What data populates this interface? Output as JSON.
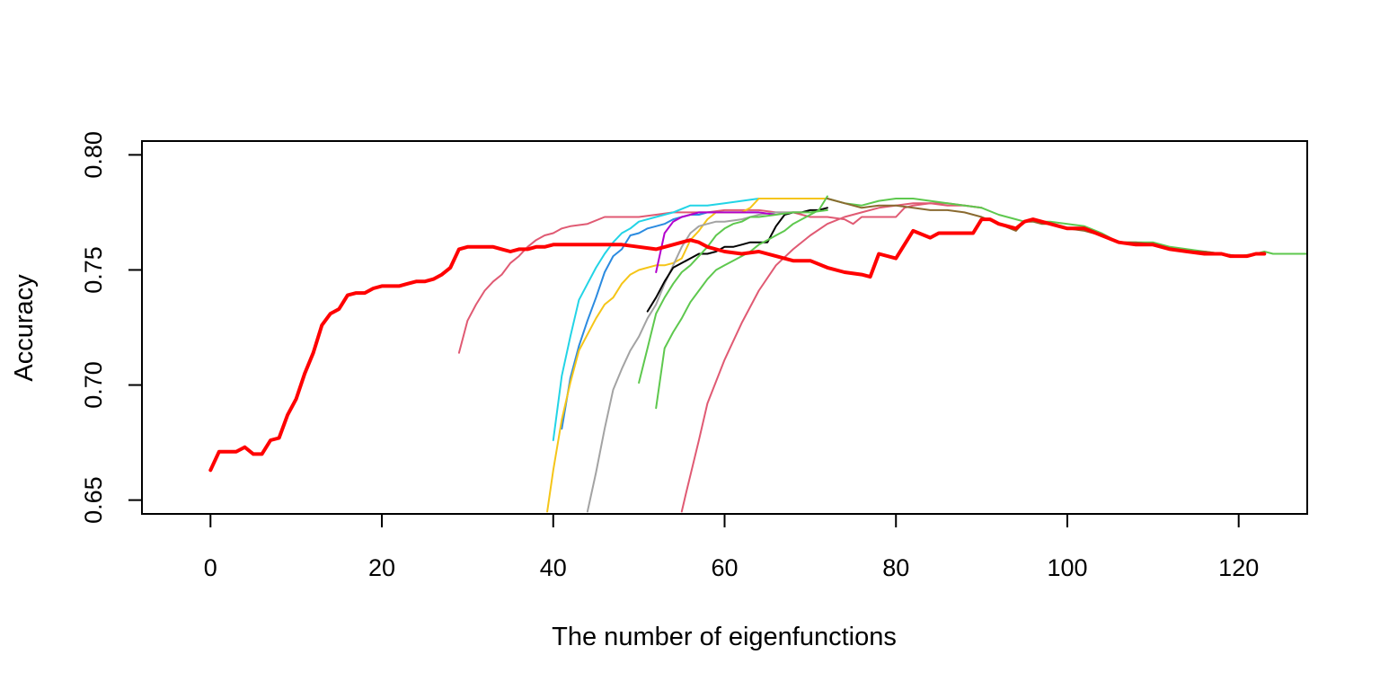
{
  "chart_data": {
    "type": "line",
    "title": "",
    "xlabel": "The number of eigenfunctions",
    "ylabel": "Accuracy",
    "xlim": [
      -8,
      128
    ],
    "ylim": [
      0.644,
      0.806
    ],
    "xticks": [
      0,
      20,
      40,
      60,
      80,
      100,
      120
    ],
    "yticks": [
      0.65,
      0.7,
      0.75,
      0.8
    ],
    "ytick_labels": [
      "0.65",
      "0.70",
      "0.75",
      "0.80"
    ],
    "grid": false,
    "legend": "none",
    "series": [
      {
        "color": "#e05a73",
        "width": 2,
        "x": [
          29,
          30,
          31,
          32,
          33,
          34,
          35,
          36,
          37,
          38,
          39,
          40,
          41,
          42,
          44,
          46,
          48,
          50,
          52,
          54,
          56,
          58,
          60,
          62,
          64,
          66,
          68,
          70,
          72,
          74,
          75,
          76,
          78,
          80,
          81,
          82,
          84,
          86,
          88,
          90
        ],
        "y": [
          0.714,
          0.728,
          0.735,
          0.741,
          0.745,
          0.748,
          0.753,
          0.756,
          0.76,
          0.763,
          0.765,
          0.766,
          0.768,
          0.769,
          0.77,
          0.773,
          0.773,
          0.773,
          0.774,
          0.775,
          0.775,
          0.775,
          0.776,
          0.776,
          0.776,
          0.775,
          0.775,
          0.773,
          0.773,
          0.772,
          0.77,
          0.773,
          0.773,
          0.773,
          0.777,
          0.778,
          0.779,
          0.778,
          0.778,
          0.777
        ]
      },
      {
        "color": "#e05a73",
        "width": 2,
        "x": [
          55,
          55.5,
          57,
          58,
          60,
          62,
          64,
          66,
          68,
          70,
          72,
          74,
          76,
          78,
          80,
          82,
          84,
          86,
          88,
          90
        ],
        "y": [
          0.645,
          0.653,
          0.676,
          0.692,
          0.711,
          0.727,
          0.741,
          0.752,
          0.759,
          0.765,
          0.77,
          0.773,
          0.775,
          0.777,
          0.778,
          0.779,
          0.779,
          0.779,
          0.778,
          0.777
        ]
      },
      {
        "color": "#22d4e6",
        "width": 2,
        "x": [
          40,
          41,
          42,
          43,
          44,
          45,
          46,
          47,
          48,
          49,
          50,
          52,
          54,
          56,
          58,
          60,
          62,
          64
        ],
        "y": [
          0.676,
          0.704,
          0.721,
          0.737,
          0.744,
          0.751,
          0.757,
          0.762,
          0.766,
          0.768,
          0.771,
          0.773,
          0.775,
          0.778,
          0.778,
          0.779,
          0.78,
          0.781
        ]
      },
      {
        "color": "#2b8be0",
        "width": 2,
        "x": [
          41,
          42,
          43,
          44,
          45,
          46,
          47,
          48,
          49,
          50,
          51,
          52,
          53,
          54,
          55,
          56,
          57,
          58,
          60,
          62,
          64
        ],
        "y": [
          0.681,
          0.703,
          0.717,
          0.728,
          0.738,
          0.749,
          0.756,
          0.759,
          0.765,
          0.766,
          0.768,
          0.769,
          0.77,
          0.772,
          0.773,
          0.774,
          0.774,
          0.775,
          0.775,
          0.775,
          0.775
        ]
      },
      {
        "color": "#f5c518",
        "width": 2,
        "x": [
          39.3,
          40,
          41,
          42,
          43,
          44,
          45,
          46,
          47,
          48,
          49,
          50,
          51,
          52,
          53,
          54,
          55,
          56,
          57,
          58,
          59,
          60,
          62,
          63,
          64,
          66,
          68,
          70,
          72
        ],
        "y": [
          0.645,
          0.663,
          0.685,
          0.701,
          0.715,
          0.722,
          0.729,
          0.735,
          0.738,
          0.744,
          0.748,
          0.75,
          0.751,
          0.752,
          0.752,
          0.753,
          0.755,
          0.763,
          0.767,
          0.772,
          0.775,
          0.775,
          0.775,
          0.777,
          0.781,
          0.781,
          0.781,
          0.781,
          0.781
        ]
      },
      {
        "color": "#a3a3a3",
        "width": 2,
        "x": [
          44,
          45,
          46,
          47,
          48,
          49,
          50,
          51,
          52,
          53,
          54,
          55,
          56,
          57,
          58,
          59,
          60,
          62,
          64,
          66,
          68
        ],
        "y": [
          0.645,
          0.662,
          0.681,
          0.698,
          0.707,
          0.715,
          0.721,
          0.729,
          0.735,
          0.744,
          0.752,
          0.76,
          0.766,
          0.769,
          0.77,
          0.771,
          0.771,
          0.772,
          0.774,
          0.775,
          0.775
        ]
      },
      {
        "color": "#b300cc",
        "width": 2,
        "x": [
          52,
          53,
          54,
          55,
          56,
          57,
          58,
          60,
          62,
          64,
          66
        ],
        "y": [
          0.749,
          0.766,
          0.771,
          0.773,
          0.774,
          0.775,
          0.775,
          0.775,
          0.775,
          0.775,
          0.774
        ]
      },
      {
        "color": "#000000",
        "width": 2,
        "x": [
          51,
          52,
          53,
          54,
          55,
          56,
          57,
          58,
          59,
          60,
          61,
          62,
          63,
          64,
          65,
          66,
          67,
          68,
          69,
          70,
          71,
          72
        ],
        "y": [
          0.732,
          0.738,
          0.745,
          0.751,
          0.753,
          0.755,
          0.757,
          0.757,
          0.758,
          0.76,
          0.76,
          0.761,
          0.762,
          0.762,
          0.762,
          0.769,
          0.774,
          0.775,
          0.775,
          0.776,
          0.776,
          0.777
        ]
      },
      {
        "color": "#5ec84e",
        "width": 2,
        "x": [
          50,
          51,
          52,
          53,
          54,
          55,
          56,
          57,
          58,
          59,
          60,
          61,
          62,
          63,
          64,
          66,
          68,
          70,
          72
        ],
        "y": [
          0.701,
          0.716,
          0.731,
          0.738,
          0.744,
          0.749,
          0.752,
          0.756,
          0.76,
          0.765,
          0.768,
          0.77,
          0.771,
          0.773,
          0.773,
          0.774,
          0.775,
          0.775,
          0.776
        ]
      },
      {
        "color": "#5ec84e",
        "width": 2,
        "x": [
          52,
          53,
          54,
          55,
          56,
          57,
          58,
          59,
          60,
          61,
          62,
          63,
          64,
          65,
          66,
          67,
          68,
          69,
          70,
          71,
          72
        ],
        "y": [
          0.69,
          0.716,
          0.723,
          0.729,
          0.736,
          0.741,
          0.746,
          0.75,
          0.752,
          0.754,
          0.756,
          0.758,
          0.761,
          0.763,
          0.765,
          0.767,
          0.77,
          0.772,
          0.774,
          0.776,
          0.782
        ]
      },
      {
        "color": "#5ec84e",
        "width": 2,
        "x": [
          72,
          74,
          76,
          78,
          80,
          82,
          84,
          86,
          88,
          90,
          92,
          94,
          95,
          96,
          97,
          98,
          100,
          102,
          104,
          106,
          108,
          110,
          112,
          114,
          116,
          118,
          120,
          122,
          123,
          124,
          125,
          126,
          128
        ],
        "y": [
          0.781,
          0.779,
          0.778,
          0.78,
          0.781,
          0.781,
          0.78,
          0.779,
          0.778,
          0.777,
          0.774,
          0.772,
          0.771,
          0.772,
          0.771,
          0.771,
          0.77,
          0.769,
          0.766,
          0.762,
          0.762,
          0.762,
          0.76,
          0.759,
          0.758,
          0.757,
          0.756,
          0.757,
          0.758,
          0.757,
          0.757,
          0.757,
          0.757
        ]
      },
      {
        "color": "#8a6a30",
        "width": 2,
        "x": [
          72,
          74,
          76,
          78,
          80,
          82,
          84,
          86,
          88,
          90,
          92,
          94,
          95,
          96,
          97,
          98,
          100,
          102,
          104,
          106,
          108,
          110,
          112,
          114,
          116,
          118,
          120,
          121,
          122,
          123
        ],
        "y": [
          0.781,
          0.779,
          0.777,
          0.778,
          0.778,
          0.777,
          0.776,
          0.776,
          0.775,
          0.773,
          0.77,
          0.767,
          0.771,
          0.771,
          0.77,
          0.77,
          0.768,
          0.767,
          0.765,
          0.762,
          0.762,
          0.761,
          0.759,
          0.758,
          0.758,
          0.757,
          0.756,
          0.756,
          0.757,
          0.757
        ]
      },
      {
        "color": "#ff0000",
        "width": 4,
        "x": [
          0,
          1,
          2,
          3,
          4,
          5,
          6,
          7,
          8,
          9,
          10,
          11,
          12,
          13,
          14,
          15,
          16,
          17,
          18,
          19,
          20,
          21,
          22,
          23,
          24,
          25,
          26,
          27,
          28,
          29,
          30,
          31,
          32,
          33,
          34,
          35,
          36,
          37,
          38,
          39,
          40,
          41,
          42,
          44,
          46,
          48,
          50,
          52,
          54,
          55,
          56,
          57,
          58,
          60,
          62,
          64,
          66,
          68,
          70,
          72,
          74,
          76,
          77,
          78,
          80,
          82,
          84,
          85,
          86,
          88,
          89,
          90,
          91,
          92,
          94,
          95,
          96,
          98,
          100,
          102,
          104,
          106,
          108,
          110,
          112,
          114,
          116,
          118,
          119,
          120,
          121,
          122,
          123
        ],
        "y": [
          0.663,
          0.671,
          0.671,
          0.671,
          0.673,
          0.67,
          0.67,
          0.676,
          0.677,
          0.687,
          0.694,
          0.705,
          0.714,
          0.726,
          0.731,
          0.733,
          0.739,
          0.74,
          0.74,
          0.742,
          0.743,
          0.743,
          0.743,
          0.744,
          0.745,
          0.745,
          0.746,
          0.748,
          0.751,
          0.759,
          0.76,
          0.76,
          0.76,
          0.76,
          0.759,
          0.758,
          0.759,
          0.759,
          0.76,
          0.76,
          0.761,
          0.761,
          0.761,
          0.761,
          0.761,
          0.761,
          0.76,
          0.759,
          0.761,
          0.762,
          0.763,
          0.762,
          0.76,
          0.758,
          0.757,
          0.758,
          0.756,
          0.754,
          0.754,
          0.751,
          0.749,
          0.748,
          0.747,
          0.757,
          0.755,
          0.767,
          0.764,
          0.766,
          0.766,
          0.766,
          0.766,
          0.772,
          0.772,
          0.77,
          0.768,
          0.771,
          0.772,
          0.77,
          0.768,
          0.768,
          0.765,
          0.762,
          0.761,
          0.761,
          0.759,
          0.758,
          0.757,
          0.757,
          0.756,
          0.756,
          0.756,
          0.757,
          0.757
        ]
      }
    ]
  }
}
